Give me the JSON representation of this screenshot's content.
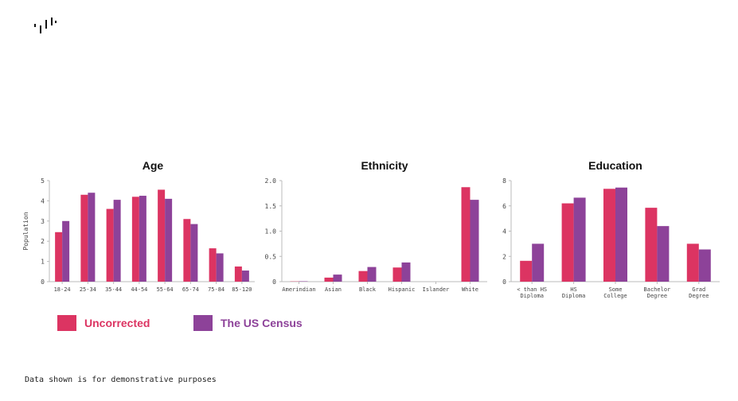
{
  "colors": {
    "series1": "#dc3462",
    "series2": "#8d4299",
    "axis": "#bbbbbb",
    "logo": "#111111"
  },
  "logo": {
    "name": "waveform-logo"
  },
  "legend": [
    {
      "name": "Uncorrected",
      "color": "#dc3462"
    },
    {
      "name": "The US Census",
      "color": "#8d4299"
    }
  ],
  "footnote": "Data shown is for demonstrative purposes",
  "chart_data": [
    {
      "type": "bar",
      "title": "Age",
      "ylabel": "Population",
      "xlabel": "",
      "ylim": [
        0,
        5
      ],
      "yticks": [
        "0",
        "1",
        "2",
        "3",
        "4",
        "5"
      ],
      "categories": [
        [
          "18-24"
        ],
        [
          "25-34"
        ],
        [
          "35-44"
        ],
        [
          "44-54"
        ],
        [
          "55-64"
        ],
        [
          "65-74"
        ],
        [
          "75-84"
        ],
        [
          "85-120"
        ]
      ],
      "series": [
        {
          "name": "Uncorrected",
          "values": [
            2.45,
            4.3,
            3.6,
            4.2,
            4.55,
            3.1,
            1.65,
            0.75
          ]
        },
        {
          "name": "The US Census",
          "values": [
            3.0,
            4.4,
            4.05,
            4.25,
            4.1,
            2.85,
            1.4,
            0.55
          ]
        }
      ]
    },
    {
      "type": "bar",
      "title": "Ethnicity",
      "ylabel": "",
      "xlabel": "",
      "ylim": [
        0,
        2.0
      ],
      "yticks": [
        "0",
        "0.5",
        "1.0",
        "1.5",
        "2.0"
      ],
      "categories": [
        [
          "Amerindian"
        ],
        [
          "Asian"
        ],
        [
          "Black"
        ],
        [
          "Hispanic"
        ],
        [
          "Islander"
        ],
        [
          "White"
        ]
      ],
      "series": [
        {
          "name": "Uncorrected",
          "values": [
            0.005,
            0.08,
            0.21,
            0.28,
            0.0,
            1.87
          ]
        },
        {
          "name": "The US Census",
          "values": [
            0.008,
            0.14,
            0.29,
            0.38,
            0.0,
            1.62
          ]
        }
      ]
    },
    {
      "type": "bar",
      "title": "Education",
      "ylabel": "",
      "xlabel": "",
      "ylim": [
        0,
        8
      ],
      "yticks": [
        "0",
        "2",
        "4",
        "6",
        "8"
      ],
      "categories": [
        [
          "< than HS",
          "Diploma"
        ],
        [
          "HS",
          "Diploma"
        ],
        [
          "Some",
          "College"
        ],
        [
          "Bachelor",
          "Degree"
        ],
        [
          "Grad",
          "Degree"
        ]
      ],
      "series": [
        {
          "name": "Uncorrected",
          "values": [
            1.65,
            6.2,
            7.35,
            5.85,
            3.0
          ]
        },
        {
          "name": "The US Census",
          "values": [
            3.0,
            6.65,
            7.45,
            4.4,
            2.55
          ]
        }
      ]
    }
  ]
}
